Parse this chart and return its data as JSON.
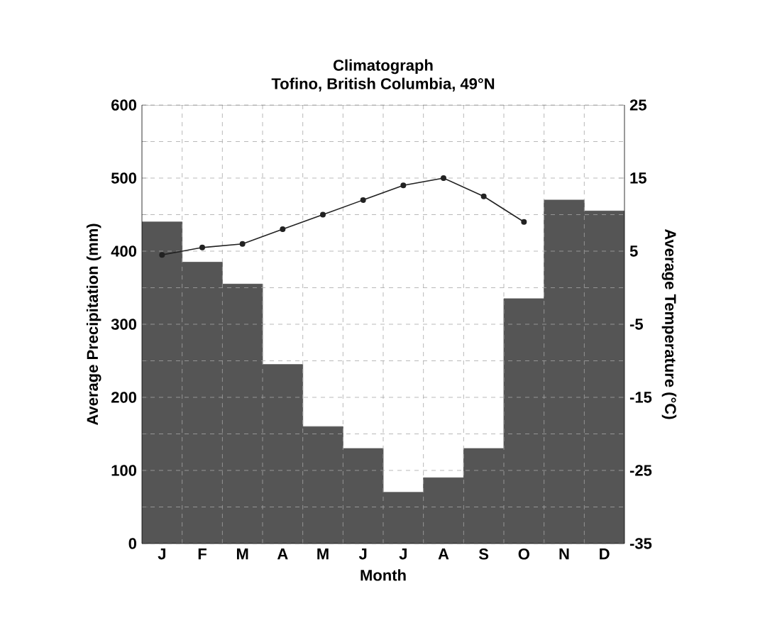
{
  "chart_data": {
    "type": "bar",
    "title": "Climatograph",
    "subtitle": "Tofino, British Columbia, 49°N",
    "xlabel": "Month",
    "ylabel": "Average Precipitation (mm)",
    "y2label": "Average Temperature (°C)",
    "categories": [
      "J",
      "F",
      "M",
      "A",
      "M",
      "J",
      "J",
      "A",
      "S",
      "O",
      "N",
      "D"
    ],
    "series": [
      {
        "color": "#555555",
        "values": [
          440,
          385,
          355,
          245,
          160,
          130,
          70,
          90,
          130,
          335,
          470,
          455
        ]
      },
      {
        "type": "line",
        "axis": "y2",
        "color": "#222222",
        "marker": "circle",
        "values": [
          4.5,
          5.5,
          6,
          8,
          10,
          12,
          14,
          15,
          12.5,
          9,
          null,
          null
        ]
      }
    ],
    "ylim": [
      0,
      600
    ],
    "yticks": [
      0,
      {
        "value": 50,
        "label": null
      },
      100,
      {
        "value": 150,
        "label": null
      },
      200,
      {
        "value": 250,
        "label": null
      },
      300,
      {
        "value": 350,
        "label": null
      },
      400,
      {
        "value": 450,
        "label": null
      },
      500,
      {
        "value": 550,
        "label": null
      },
      600
    ],
    "y2lim": [
      -35,
      25
    ],
    "y2ticks": [
      -35,
      -25,
      -15,
      -5,
      5,
      15,
      25
    ],
    "grid": true
  }
}
